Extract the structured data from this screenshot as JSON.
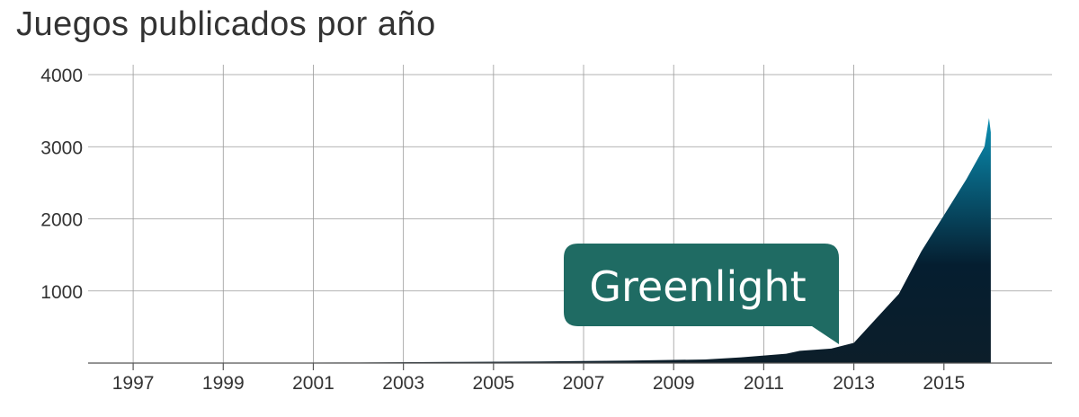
{
  "chart_data": {
    "type": "area",
    "title": "Juegos publicados por año",
    "xlabel": "",
    "ylabel": "",
    "x_ticks": [
      "1997",
      "1999",
      "2001",
      "2003",
      "2005",
      "2007",
      "2009",
      "2011",
      "2013",
      "2015"
    ],
    "y_ticks": [
      "1000",
      "2000",
      "3000",
      "4000"
    ],
    "xlim": [
      1996,
      2017.4
    ],
    "ylim": [
      0,
      4000
    ],
    "grid": true,
    "gradient_colors": [
      "#0a8fb3",
      "#051e30",
      "#0c1e2a"
    ],
    "annotation": {
      "text": "Greenlight",
      "x": 2012,
      "color": "#1f6b63"
    },
    "series": [
      {
        "x": [
          1998,
          2000,
          2002,
          2004,
          2006,
          2008,
          2009.7,
          2010.5,
          2011.5,
          2011.8,
          2012.5,
          2013,
          2013.5,
          2014,
          2014.5,
          2015,
          2015.5,
          2015.9,
          2016
        ],
        "values": [
          0,
          5,
          8,
          15,
          22,
          35,
          50,
          80,
          130,
          170,
          200,
          280,
          620,
          960,
          1550,
          2050,
          2550,
          3000,
          3400
        ]
      }
    ]
  }
}
